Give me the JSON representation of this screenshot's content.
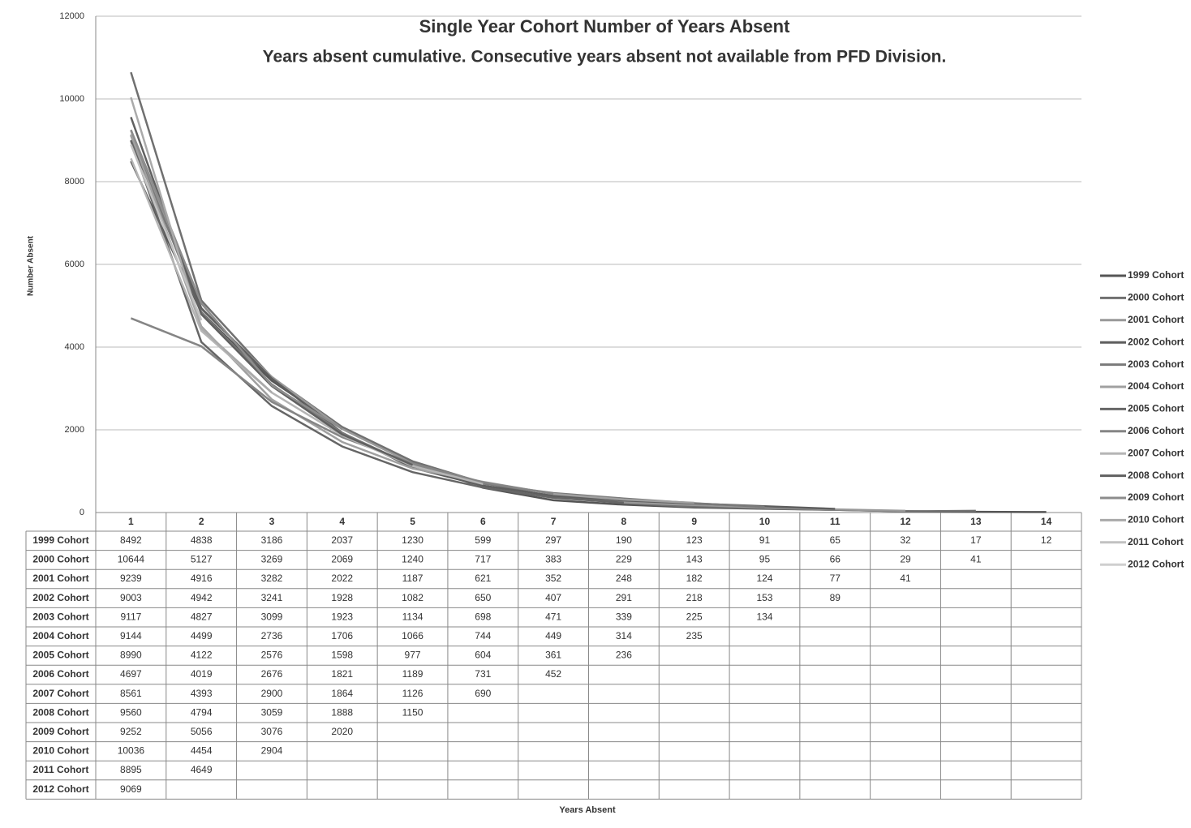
{
  "chart_data": {
    "type": "line",
    "title": "Single Year Cohort Number of Years Absent",
    "subtitle": "Years absent cumulative. Consecutive years absent not available from PFD Division.",
    "y_label": "Number Absent",
    "x_label": "Years Absent",
    "categories": [
      "1",
      "2",
      "3",
      "4",
      "5",
      "6",
      "7",
      "8",
      "9",
      "10",
      "11",
      "12",
      "13",
      "14"
    ],
    "ylim": [
      0,
      12000
    ],
    "yticks": [
      0,
      2000,
      4000,
      6000,
      8000,
      10000,
      12000
    ],
    "grid": true,
    "legend": "right",
    "series": [
      {
        "name": "1999 Cohort",
        "color": "#555555",
        "values": [
          8492,
          4838,
          3186,
          2037,
          1230,
          599,
          297,
          190,
          123,
          91,
          65,
          32,
          17,
          12
        ]
      },
      {
        "name": "2000 Cohort",
        "color": "#707070",
        "values": [
          10644,
          5127,
          3269,
          2069,
          1240,
          717,
          383,
          229,
          143,
          95,
          66,
          29,
          41,
          null
        ]
      },
      {
        "name": "2001 Cohort",
        "color": "#999999",
        "values": [
          9239,
          4916,
          3282,
          2022,
          1187,
          621,
          352,
          248,
          182,
          124,
          77,
          41,
          null,
          null
        ]
      },
      {
        "name": "2002 Cohort",
        "color": "#5e5e5e",
        "values": [
          9003,
          4942,
          3241,
          1928,
          1082,
          650,
          407,
          291,
          218,
          153,
          89,
          null,
          null,
          null
        ]
      },
      {
        "name": "2003 Cohort",
        "color": "#7a7a7a",
        "values": [
          9117,
          4827,
          3099,
          1923,
          1134,
          698,
          471,
          339,
          225,
          134,
          null,
          null,
          null,
          null
        ]
      },
      {
        "name": "2004 Cohort",
        "color": "#a0a0a0",
        "values": [
          9144,
          4499,
          2736,
          1706,
          1066,
          744,
          449,
          314,
          235,
          null,
          null,
          null,
          null,
          null
        ]
      },
      {
        "name": "2005 Cohort",
        "color": "#666666",
        "values": [
          8990,
          4122,
          2576,
          1598,
          977,
          604,
          361,
          236,
          null,
          null,
          null,
          null,
          null,
          null
        ]
      },
      {
        "name": "2006 Cohort",
        "color": "#858585",
        "values": [
          4697,
          4019,
          2676,
          1821,
          1189,
          731,
          452,
          null,
          null,
          null,
          null,
          null,
          null,
          null
        ]
      },
      {
        "name": "2007 Cohort",
        "color": "#b5b5b5",
        "values": [
          8561,
          4393,
          2900,
          1864,
          1126,
          690,
          null,
          null,
          null,
          null,
          null,
          null,
          null,
          null
        ]
      },
      {
        "name": "2008 Cohort",
        "color": "#606060",
        "values": [
          9560,
          4794,
          3059,
          1888,
          1150,
          null,
          null,
          null,
          null,
          null,
          null,
          null,
          null,
          null
        ]
      },
      {
        "name": "2009 Cohort",
        "color": "#8c8c8c",
        "values": [
          9252,
          5056,
          3076,
          2020,
          null,
          null,
          null,
          null,
          null,
          null,
          null,
          null,
          null,
          null
        ]
      },
      {
        "name": "2010 Cohort",
        "color": "#aaaaaa",
        "values": [
          10036,
          4454,
          2904,
          null,
          null,
          null,
          null,
          null,
          null,
          null,
          null,
          null,
          null,
          null
        ]
      },
      {
        "name": "2011 Cohort",
        "color": "#c2c2c2",
        "values": [
          8895,
          4649,
          null,
          null,
          null,
          null,
          null,
          null,
          null,
          null,
          null,
          null,
          null,
          null
        ]
      },
      {
        "name": "2012 Cohort",
        "color": "#cfcfcf",
        "values": [
          9069,
          null,
          null,
          null,
          null,
          null,
          null,
          null,
          null,
          null,
          null,
          null,
          null,
          null
        ]
      }
    ]
  }
}
